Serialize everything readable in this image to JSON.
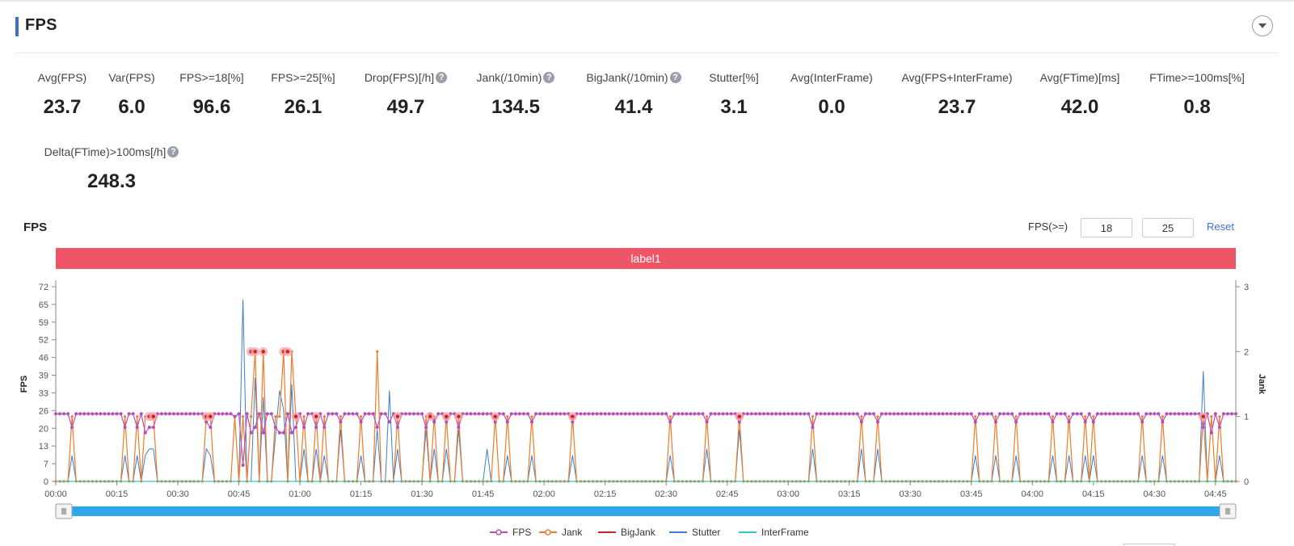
{
  "section": {
    "title": "FPS"
  },
  "metrics": [
    {
      "label": "Avg(FPS)",
      "value": "23.7",
      "help": false
    },
    {
      "label": "Var(FPS)",
      "value": "6.0",
      "help": false
    },
    {
      "label": "FPS>=18[%]",
      "value": "96.6",
      "help": false
    },
    {
      "label": "FPS>=25[%]",
      "value": "26.1",
      "help": false
    },
    {
      "label": "Drop(FPS)[/h]",
      "value": "49.7",
      "help": true
    },
    {
      "label": "Jank(/10min)",
      "value": "134.5",
      "help": true
    },
    {
      "label": "BigJank(/10min)",
      "value": "41.4",
      "help": true
    },
    {
      "label": "Stutter[%]",
      "value": "3.1",
      "help": false
    },
    {
      "label": "Avg(InterFrame)",
      "value": "0.0",
      "help": false
    },
    {
      "label": "Avg(FPS+InterFrame)",
      "value": "23.7",
      "help": false
    },
    {
      "label": "Avg(FTime)[ms]",
      "value": "42.0",
      "help": false
    },
    {
      "label": "FTime>=100ms[%]",
      "value": "0.8",
      "help": false
    },
    {
      "label": "Delta(FTime)>100ms[/h]",
      "value": "248.3",
      "help": true
    }
  ],
  "chart_header": {
    "title": "FPS",
    "threshold_label": "FPS(>=)",
    "threshold_low": "18",
    "threshold_high": "25",
    "reset_label": "Reset"
  },
  "label_band": {
    "text": "label1",
    "color": "#ee5566"
  },
  "colors": {
    "fps": "#b84fb8",
    "jank": "#f07b2a",
    "bigjank": "#c8242c",
    "stutter": "#3a7fd0",
    "interframe": "#37c4c4",
    "slider": "#2ea7e8",
    "accent": "#3e6fd9"
  },
  "chart_data": {
    "type": "line",
    "title": "FPS",
    "ylabel": "FPS",
    "y2label": "Jank",
    "ylim": [
      0,
      72
    ],
    "y_ticks": [
      "72",
      "65",
      "59",
      "52",
      "46",
      "39",
      "33",
      "26",
      "20",
      "13",
      "7",
      "0"
    ],
    "y2lim": [
      0,
      3
    ],
    "y2_ticks": [
      "0",
      "1",
      "2",
      "3"
    ],
    "x_unit": "mm:ss",
    "xlim": [
      0,
      290
    ],
    "x_ticks": [
      "00:00",
      "00:15",
      "00:30",
      "00:45",
      "01:00",
      "01:15",
      "01:30",
      "01:45",
      "02:00",
      "02:15",
      "02:30",
      "02:45",
      "03:00",
      "03:15",
      "03:30",
      "03:45",
      "04:00",
      "04:15",
      "04:30",
      "04:45"
    ],
    "legend": [
      "FPS",
      "Jank",
      "BigJank",
      "Stutter",
      "InterFrame"
    ],
    "legend_position": "bottom",
    "jank_events": [
      [
        4,
        1
      ],
      [
        17,
        1
      ],
      [
        20,
        1
      ],
      [
        22,
        1
      ],
      [
        23,
        1
      ],
      [
        24,
        1
      ],
      [
        37,
        1
      ],
      [
        38,
        1
      ],
      [
        44,
        1
      ],
      [
        46,
        1
      ],
      [
        48,
        1
      ],
      [
        49,
        2
      ],
      [
        51,
        2
      ],
      [
        54,
        1
      ],
      [
        55,
        1
      ],
      [
        56,
        2
      ],
      [
        58,
        2
      ],
      [
        59,
        1
      ],
      [
        61,
        1
      ],
      [
        64,
        1
      ],
      [
        66,
        1
      ],
      [
        70,
        1
      ],
      [
        75,
        1
      ],
      [
        79,
        2
      ],
      [
        84,
        1
      ],
      [
        91,
        1
      ],
      [
        93,
        1
      ],
      [
        96,
        1
      ],
      [
        99,
        1
      ],
      [
        108,
        1
      ],
      [
        111,
        1
      ],
      [
        117,
        1
      ],
      [
        127,
        1
      ],
      [
        151,
        1
      ],
      [
        160,
        1
      ],
      [
        168,
        1
      ],
      [
        186,
        1
      ],
      [
        198,
        1
      ],
      [
        202,
        1
      ],
      [
        226,
        1
      ],
      [
        231,
        1
      ],
      [
        236,
        1
      ],
      [
        245,
        1
      ],
      [
        249,
        1
      ],
      [
        253,
        1
      ],
      [
        255,
        1
      ],
      [
        267,
        1
      ],
      [
        272,
        1
      ],
      [
        282,
        1
      ],
      [
        284,
        1
      ],
      [
        286,
        1
      ]
    ],
    "bigjank_events": [
      [
        23,
        1
      ],
      [
        24,
        1
      ],
      [
        37,
        1
      ],
      [
        38,
        1
      ],
      [
        48,
        2
      ],
      [
        49,
        2
      ],
      [
        51,
        2
      ],
      [
        56,
        2
      ],
      [
        57,
        2
      ],
      [
        59,
        1
      ],
      [
        64,
        1
      ],
      [
        84,
        1
      ],
      [
        92,
        1
      ],
      [
        96,
        1
      ],
      [
        99,
        1
      ],
      [
        108,
        1
      ],
      [
        127,
        1
      ],
      [
        168,
        1
      ],
      [
        282,
        1
      ]
    ],
    "stutter_events": [
      [
        4,
        0.4
      ],
      [
        17,
        0.4
      ],
      [
        20,
        0.4
      ],
      [
        22,
        0.4
      ],
      [
        23,
        0.5
      ],
      [
        24,
        0.5
      ],
      [
        37,
        0.5
      ],
      [
        38,
        0.4
      ],
      [
        46,
        2.8
      ],
      [
        49,
        1.6
      ],
      [
        51,
        1.3
      ],
      [
        54,
        0.7
      ],
      [
        55,
        1.4
      ],
      [
        56,
        1.1
      ],
      [
        58,
        1.5
      ],
      [
        61,
        0.5
      ],
      [
        64,
        0.5
      ],
      [
        66,
        0.4
      ],
      [
        70,
        0.8
      ],
      [
        75,
        0.4
      ],
      [
        79,
        0.8
      ],
      [
        82,
        1.4
      ],
      [
        84,
        0.5
      ],
      [
        91,
        0.8
      ],
      [
        93,
        0.5
      ],
      [
        96,
        0.5
      ],
      [
        99,
        0.8
      ],
      [
        106,
        0.5
      ],
      [
        111,
        0.4
      ],
      [
        117,
        0.4
      ],
      [
        127,
        0.4
      ],
      [
        151,
        0.4
      ],
      [
        160,
        0.5
      ],
      [
        168,
        0.8
      ],
      [
        186,
        0.5
      ],
      [
        198,
        0.5
      ],
      [
        202,
        0.5
      ],
      [
        226,
        0.4
      ],
      [
        231,
        0.4
      ],
      [
        236,
        0.4
      ],
      [
        245,
        0.4
      ],
      [
        249,
        0.4
      ],
      [
        253,
        0.4
      ],
      [
        255,
        0.4
      ],
      [
        267,
        0.4
      ],
      [
        272,
        0.4
      ],
      [
        282,
        1.7
      ],
      [
        286,
        0.4
      ]
    ],
    "fps_dips": [
      [
        4,
        20
      ],
      [
        17,
        20
      ],
      [
        20,
        20
      ],
      [
        22,
        18
      ],
      [
        23,
        20
      ],
      [
        24,
        20
      ],
      [
        37,
        22
      ],
      [
        38,
        20
      ],
      [
        44,
        24
      ],
      [
        46,
        6
      ],
      [
        48,
        18
      ],
      [
        49,
        20
      ],
      [
        51,
        18
      ],
      [
        54,
        20
      ],
      [
        55,
        18
      ],
      [
        56,
        18
      ],
      [
        58,
        18
      ],
      [
        59,
        20
      ],
      [
        61,
        20
      ],
      [
        64,
        20
      ],
      [
        66,
        20
      ],
      [
        70,
        22
      ],
      [
        75,
        22
      ],
      [
        79,
        20
      ],
      [
        82,
        22
      ],
      [
        84,
        20
      ],
      [
        91,
        20
      ],
      [
        93,
        22
      ],
      [
        96,
        22
      ],
      [
        99,
        20
      ],
      [
        108,
        22
      ],
      [
        111,
        22
      ],
      [
        117,
        22
      ],
      [
        127,
        22
      ],
      [
        151,
        22
      ],
      [
        160,
        22
      ],
      [
        168,
        22
      ],
      [
        186,
        20
      ],
      [
        198,
        22
      ],
      [
        202,
        22
      ],
      [
        226,
        22
      ],
      [
        231,
        22
      ],
      [
        236,
        22
      ],
      [
        245,
        22
      ],
      [
        249,
        22
      ],
      [
        253,
        22
      ],
      [
        255,
        22
      ],
      [
        267,
        22
      ],
      [
        272,
        22
      ],
      [
        282,
        20
      ],
      [
        284,
        18
      ],
      [
        286,
        20
      ]
    ],
    "fps_baseline": 25,
    "interframe": [
      [
        0,
        0
      ],
      [
        290,
        0
      ]
    ],
    "zoom_range": [
      0,
      1
    ]
  }
}
